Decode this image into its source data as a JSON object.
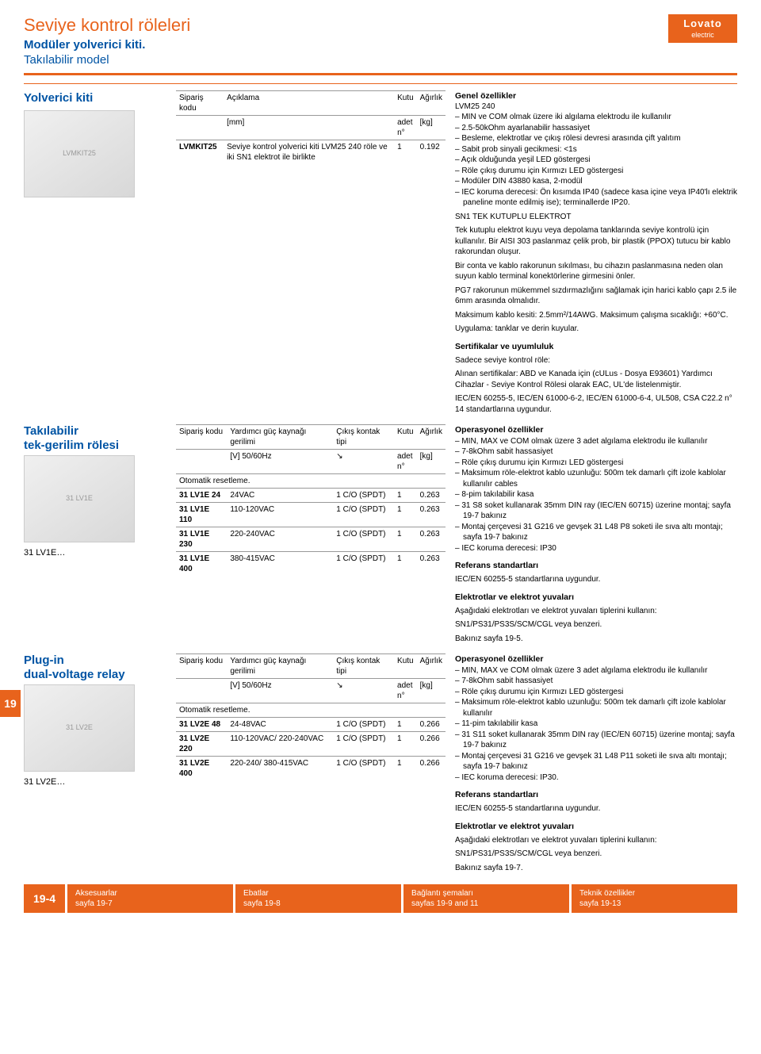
{
  "brand": {
    "name": "Lovato",
    "tag": "electric"
  },
  "header": {
    "title": "Seviye kontrol röleleri",
    "subtitle": "Modüler yolverici kiti.",
    "subtitle2": "Takılabilir model"
  },
  "colors": {
    "accent_orange": "#e8631c",
    "accent_blue": "#0054a4",
    "text": "#000000",
    "bg": "#ffffff",
    "rule_gray": "#999999"
  },
  "section1": {
    "label": "Yolverici kiti",
    "table": {
      "headers": [
        "Sipariş kodu",
        "Açıklama",
        "Kutu",
        "Ağırlık"
      ],
      "unit_row": [
        "",
        "[mm]",
        "adet\nn°",
        "[kg]"
      ],
      "rows": [
        [
          "LVMKIT25",
          "Seviye kontrol yolverici kiti LVM25 240 röle ve iki SN1 elektrot ile birlikte",
          "1",
          "0.192"
        ]
      ]
    },
    "specs_title": "Genel özellikler",
    "specs_sub": "LVM25 240",
    "specs_list": [
      "MIN ve COM olmak üzere iki algılama elektrodu ile kullanılır",
      "2.5-50kOhm ayarlanabilir hassasiyet",
      "Besleme, elektrotlar ve çıkış rölesi devresi arasında çift yalıtım",
      "Sabit prob sinyali gecikmesi: <1s",
      "Açık olduğunda yeşil LED göstergesi",
      "Röle çıkış durumu için Kırmızı LED göstergesi",
      "Modüler DIN 43880 kasa, 2-modül",
      "IEC koruma derecesi: Ön kısımda IP40 (sadece kasa içine veya IP40'lı elektrik paneline monte edilmiş ise); terminallerde IP20."
    ],
    "sn1_title": "SN1 TEK KUTUPLU ELEKTROT",
    "sn1_text": [
      "Tek kutuplu elektrot kuyu veya depolama tanklarında seviye kontrolü için kullanılır. Bir AISI 303 paslanmaz çelik prob, bir plastik (PPOX) tutucu bir kablo rakorundan oluşur.",
      "Bir conta ve kablo rakorunun sıkılması, bu cihazın paslanmasına neden olan suyun kablo terminal konektörlerine girmesini önler.",
      "PG7 rakorunun mükemmel sızdırmazlığını sağlamak için harici kablo çapı 2.5 ile 6mm arasında olmalıdır.",
      "Maksimum kablo kesiti: 2.5mm²/14AWG. Maksimum çalışma sıcaklığı: +60°C.",
      "Uygulama: tanklar ve derin kuyular."
    ],
    "cert_title": "Sertifikalar ve uyumluluk",
    "cert_text": [
      "Sadece seviye kontrol röle:",
      "Alınan sertifikalar: ABD ve Kanada için (cULus - Dosya E93601) Yardımcı Cihazlar - Seviye Kontrol Rölesi olarak EAC, UL'de listelenmiştir.",
      "IEC/EN 60255-5, IEC/EN 61000-6-2, IEC/EN 61000-6-4, UL508, CSA C22.2 n° 14 standartlarına uygundur."
    ]
  },
  "section2": {
    "label": "Takılabilir\ntek-gerilim rölesi",
    "product_code": "31 LV1E…",
    "table": {
      "headers": [
        "Sipariş kodu",
        "Yardımcı güç kaynağı gerilimi",
        "Çıkış kontak tipi",
        "Kutu",
        "Ağırlık"
      ],
      "unit_row": [
        "",
        "[V] 50/60Hz",
        "",
        "adet\nn°",
        "[kg]"
      ],
      "note": "Otomatik resetleme.",
      "rows": [
        [
          "31 LV1E 24",
          "24VAC",
          "1 C/O (SPDT)",
          "1",
          "0.263"
        ],
        [
          "31 LV1E 110",
          "110-120VAC",
          "1 C/O (SPDT)",
          "1",
          "0.263"
        ],
        [
          "31 LV1E 230",
          "220-240VAC",
          "1 C/O (SPDT)",
          "1",
          "0.263"
        ],
        [
          "31 LV1E 400",
          "380-415VAC",
          "1 C/O (SPDT)",
          "1",
          "0.263"
        ]
      ]
    },
    "op_title": "Operasyonel özellikler",
    "op_list": [
      "MIN, MAX ve COM olmak üzere 3 adet algılama elektrodu ile kullanılır",
      "7-8kOhm sabit hassasiyet",
      "Röle çıkış durumu için Kırmızı LED göstergesi",
      "Maksimum röle-elektrot kablo uzunluğu: 500m tek damarlı çift izole kablolar kullanılır cables",
      "8-pim takılabilir kasa",
      "31 S8 soket kullanarak 35mm DIN ray (IEC/EN 60715) üzerine montaj; sayfa 19-7 bakınız",
      "Montaj çerçevesi 31 G216 ve gevşek 31 L48 P8 soketi ile sıva altı montajı; sayfa 19-7 bakınız",
      "IEC koruma derecesi: IP30"
    ],
    "ref_title": "Referans standartları",
    "ref_text": "IEC/EN 60255-5 standartlarına uygundur.",
    "elec_title": "Elektrotlar ve elektrot yuvaları",
    "elec_text": [
      "Aşağıdaki elektrotları ve elektrot yuvaları tiplerini kullanın:",
      "SN1/PS31/PS3S/SCM/CGL veya benzeri.",
      "Bakınız sayfa 19-5."
    ]
  },
  "section3": {
    "label": "Plug-in\ndual-voltage relay",
    "product_code": "31 LV2E…",
    "table": {
      "headers": [
        "Sipariş kodu",
        "Yardımcı güç kaynağı gerilimi",
        "Çıkış kontak tipi",
        "Kutu",
        "Ağırlık"
      ],
      "unit_row": [
        "",
        "[V] 50/60Hz",
        "",
        "adet\nn°",
        "[kg]"
      ],
      "note": "Otomatik resetleme.",
      "rows": [
        [
          "31 LV2E 48",
          "24-48VAC",
          "1 C/O (SPDT)",
          "1",
          "0.266"
        ],
        [
          "31 LV2E 220",
          "110-120VAC/ 220-240VAC",
          "1 C/O (SPDT)",
          "1",
          "0.266"
        ],
        [
          "31 LV2E 400",
          "220-240/ 380-415VAC",
          "1 C/O (SPDT)",
          "1",
          "0.266"
        ]
      ]
    },
    "op_title": "Operasyonel özellikler",
    "op_list": [
      "MIN, MAX ve COM olmak üzere 3 adet algılama elektrodu ile kullanılır",
      "7-8kOhm sabit hassasiyet",
      "Röle çıkış durumu için Kırmızı LED göstergesi",
      "Maksimum röle-elektrot kablo uzunluğu: 500m tek damarlı çift izole kablolar kullanılır",
      "11-pim takılabilir kasa",
      "31 S11 soket kullanarak 35mm DIN ray (IEC/EN 60715) üzerine montaj; sayfa 19-7 bakınız",
      "Montaj çerçevesi 31 G216 ve gevşek 31 L48 P11 soketi ile sıva altı montajı; sayfa 19-7 bakınız",
      "IEC koruma derecesi: IP30."
    ],
    "ref_title": "Referans standartları",
    "ref_text": "IEC/EN 60255-5 standartlarına uygundur.",
    "elec_title": "Elektrotlar ve elektrot yuvaları",
    "elec_text": [
      "Aşağıdaki elektrotları ve elektrot yuvaları tiplerini kullanın:",
      "SN1/PS31/PS3S/SCM/CGL veya benzeri.",
      "Bakınız sayfa 19-7."
    ]
  },
  "page_tab": "19",
  "page_number": "19-4",
  "footer": [
    {
      "t": "Aksesuarlar",
      "s": "sayfa 19-7"
    },
    {
      "t": "Ebatlar",
      "s": "sayfa 19-8"
    },
    {
      "t": "Bağlantı şemaları",
      "s": "sayfas 19-9 and 11"
    },
    {
      "t": "Teknik özellikler",
      "s": "sayfa 19-13"
    }
  ]
}
